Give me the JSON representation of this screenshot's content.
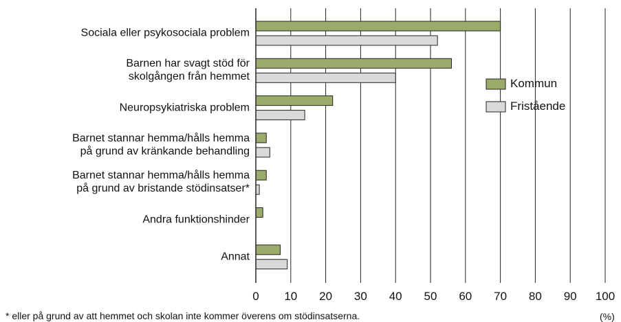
{
  "chart_data": {
    "type": "bar",
    "orientation": "horizontal",
    "categories": [
      "Sociala eller psykosociala problem",
      "Barnen har svagt stöd för\nskolgången från hemmet",
      "Neuropsykiatriska problem",
      "Barnet stannar hemma/hålls hemma\npå grund av kränkande behandling",
      "Barnet stannar hemma/hålls hemma\npå grund av bristande stödinsatser*",
      "Andra funktionshinder",
      "Annat"
    ],
    "series": [
      {
        "name": "Kommun",
        "color": "#9bab6b",
        "values": [
          70,
          56,
          22,
          3,
          3,
          2,
          7
        ]
      },
      {
        "name": "Fristående",
        "color": "#d9d9d9",
        "values": [
          52,
          40,
          14,
          4,
          1,
          0,
          9
        ]
      }
    ],
    "xlim": [
      0,
      100
    ],
    "xticks": [
      0,
      10,
      20,
      30,
      40,
      50,
      60,
      70,
      80,
      90,
      100
    ],
    "x_label": "(%)",
    "footnote": "* eller på grund av att hemmet och skolan inte kommer överens om stödinsatserna.",
    "grid": true,
    "legend": "right"
  }
}
